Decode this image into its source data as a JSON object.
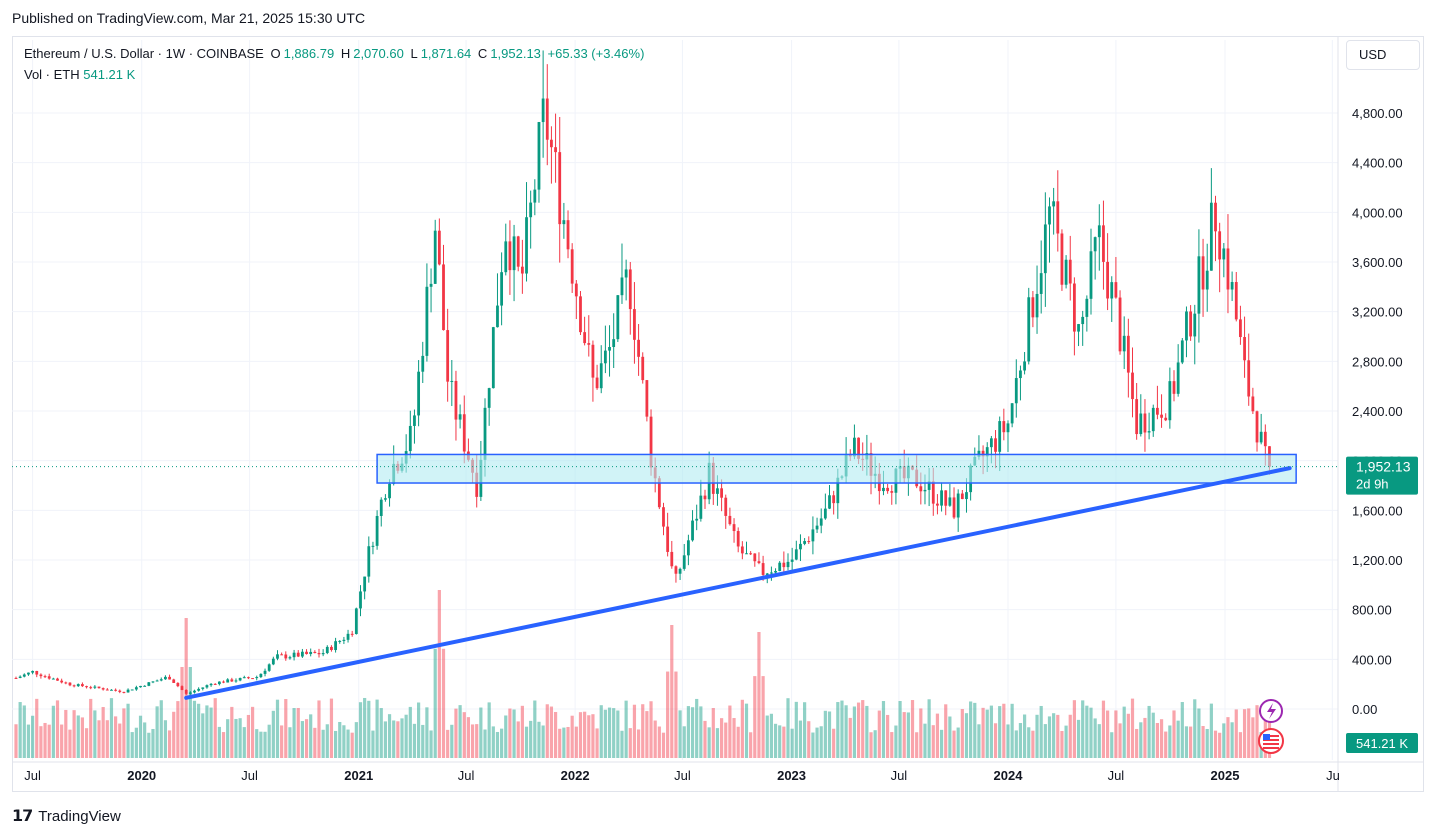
{
  "header": {
    "published": "Published on TradingView.com, Mar 21, 2025 15:30 UTC"
  },
  "legend": {
    "symbol": "Ethereum / U.S. Dollar · 1W · COINBASE",
    "open_label": "O",
    "open": "1,886.79",
    "high_label": "H",
    "high": "2,070.60",
    "low_label": "L",
    "low": "1,871.64",
    "close_label": "C",
    "close": "1,952.13",
    "change": "+65.33 (+3.46%)",
    "vol_label": "Vol · ETH",
    "vol": "541.21 K"
  },
  "currency_button": "USD",
  "price_badge": {
    "price": "1,952.13",
    "countdown": "2d 9h"
  },
  "volume_badge": "541.21 K",
  "footer": {
    "brand": "TradingView"
  },
  "colors": {
    "up": "#089981",
    "down": "#f23645",
    "trendline": "#2962ff",
    "zone_fill": "#b2ebf2",
    "zone_border": "#2962ff"
  },
  "chart_data": {
    "type": "candlestick",
    "symbol": "ETHUSD",
    "interval": "1W",
    "ylim": [
      0,
      4800
    ],
    "y_ticks": [
      0,
      400,
      800,
      1200,
      1600,
      2000,
      2400,
      2800,
      3200,
      3600,
      4000,
      4400,
      4800
    ],
    "y_tick_labels": [
      "0.00",
      "400.00",
      "800.00",
      "1,200.00",
      "1,600.00",
      "2,000.00",
      "2,400.00",
      "2,800.00",
      "3,200.00",
      "3,600.00",
      "4,000.00",
      "4,400.00",
      "4,800.00"
    ],
    "x_tick_labels": [
      "Jul",
      "2020",
      "Jul",
      "2021",
      "Jul",
      "2022",
      "Jul",
      "2023",
      "Jul",
      "2024",
      "Jul",
      "2025",
      "Ju"
    ],
    "x_tick_dates": [
      "2019-07-01",
      "2020-01-01",
      "2020-07-01",
      "2021-01-01",
      "2021-07-01",
      "2022-01-01",
      "2022-07-01",
      "2023-01-01",
      "2023-07-01",
      "2024-01-01",
      "2024-07-01",
      "2025-01-01",
      "2025-07-01"
    ],
    "last_price": 1952.13,
    "price_path": [
      [
        "2019-06-03",
        250
      ],
      [
        "2019-07-01",
        300
      ],
      [
        "2019-09-01",
        200
      ],
      [
        "2019-12-01",
        140
      ],
      [
        "2020-02-15",
        260
      ],
      [
        "2020-03-16",
        120
      ],
      [
        "2020-05-01",
        210
      ],
      [
        "2020-07-15",
        260
      ],
      [
        "2020-08-15",
        420
      ],
      [
        "2020-11-01",
        450
      ],
      [
        "2020-12-20",
        620
      ],
      [
        "2021-01-15",
        1200
      ],
      [
        "2021-02-20",
        1900
      ],
      [
        "2021-04-01",
        2200
      ],
      [
        "2021-05-10",
        3900
      ],
      [
        "2021-06-01",
        2600
      ],
      [
        "2021-07-20",
        1800
      ],
      [
        "2021-08-20",
        3200
      ],
      [
        "2021-09-05",
        3900
      ],
      [
        "2021-10-01",
        3400
      ],
      [
        "2021-11-10",
        4800
      ],
      [
        "2021-12-15",
        3900
      ],
      [
        "2022-01-10",
        3200
      ],
      [
        "2022-02-01",
        2600
      ],
      [
        "2022-03-01",
        2900
      ],
      [
        "2022-04-01",
        3500
      ],
      [
        "2022-05-10",
        2000
      ],
      [
        "2022-06-18",
        1000
      ],
      [
        "2022-08-15",
        1900
      ],
      [
        "2022-10-01",
        1300
      ],
      [
        "2022-11-10",
        1100
      ],
      [
        "2023-01-01",
        1200
      ],
      [
        "2023-03-01",
        1600
      ],
      [
        "2023-04-15",
        2100
      ],
      [
        "2023-06-01",
        1850
      ],
      [
        "2023-08-01",
        1850
      ],
      [
        "2023-10-01",
        1600
      ],
      [
        "2023-11-15",
        2000
      ],
      [
        "2024-01-01",
        2300
      ],
      [
        "2024-03-12",
        4000
      ],
      [
        "2024-05-01",
        3000
      ],
      [
        "2024-06-01",
        3800
      ],
      [
        "2024-07-01",
        3200
      ],
      [
        "2024-08-05",
        2300
      ],
      [
        "2024-10-01",
        2500
      ],
      [
        "2024-12-01",
        3700
      ],
      [
        "2024-12-16",
        4000
      ],
      [
        "2025-01-15",
        3300
      ],
      [
        "2025-02-03",
        2700
      ],
      [
        "2025-03-10",
        2000
      ],
      [
        "2025-03-17",
        1952
      ]
    ],
    "support_zone": {
      "low": 1820,
      "high": 2050,
      "start": "2021-02-01",
      "end": "2025-05-01"
    },
    "trendline": {
      "start": [
        "2020-03-16",
        90
      ],
      "end": [
        "2025-04-20",
        1940
      ]
    },
    "volume_peaks_millions": [
      [
        "2020-03-16",
        1.0
      ],
      [
        "2021-05-17",
        1.2
      ],
      [
        "2022-06-13",
        0.95
      ],
      [
        "2022-11-07",
        0.9
      ]
    ]
  }
}
